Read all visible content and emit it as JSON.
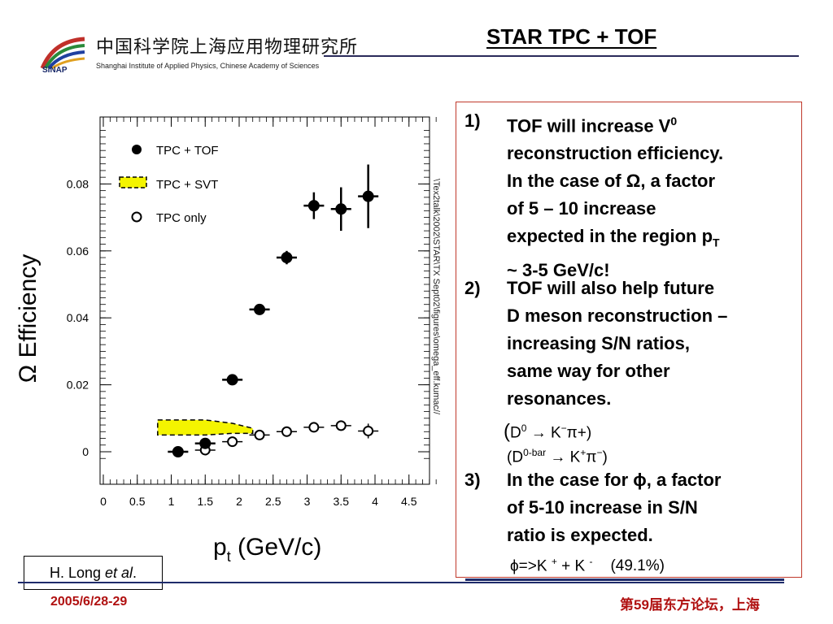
{
  "header": {
    "org_cn": "中国科学院上海应用物理研究所",
    "org_en": "Shanghai Institute of Applied Physics, Chinese Academy of Sciences",
    "logo_text": "SINAP",
    "slide_title": "STAR TPC + TOF"
  },
  "side_path": "\\Tex2talk\\2002\\STAR\\TX Sept02\\figures\\omega_eff.kumac//",
  "points": {
    "p1": {
      "num": "1)",
      "l1": "TOF will increase V",
      "l1_sup": "0",
      "l2": "reconstruction efficiency.",
      "l3a": "In the case of ",
      "l3_sym": "Ω",
      "l3b": ", a factor",
      "l4": "of 5 – 10 increase",
      "l5": "expected in the region p",
      "l5_sub": "T",
      "l6": "~ 3-5 GeV/c!"
    },
    "p2": {
      "num": "2)",
      "l1": "TOF will also help future",
      "l2": "D meson reconstruction –",
      "l3": "increasing S/N ratios,",
      "l4": "same way for other",
      "l5": "resonances."
    },
    "decay1": {
      "open": "(",
      "d": "D",
      "d_sup": "0",
      "rest": " → K",
      "k_sup": "−",
      "pi": "π+)"
    },
    "decay2": {
      "d": "(D",
      "d_sup": "0-bar",
      "rest": " → K",
      "k_sup": "+",
      "pi": "π",
      "pi_sup": "−",
      "close": ")"
    },
    "p3": {
      "num": "3)",
      "l1a": "In the case for ",
      "l1_sym": "ϕ",
      "l1b": ", a factor",
      "l2": "of 5-10 increase in S/N",
      "l3": "ratio is expected."
    },
    "decay3": {
      "phi": "ϕ",
      "a": "=>K ",
      "a_sup": "+",
      "b": "  + K ",
      "b_sup": "-",
      "br": "(49.1%)"
    }
  },
  "footer": {
    "credit_a": "H. Long ",
    "credit_b": "et al",
    "credit_c": ".",
    "date": "2005/6/28-29",
    "forum_a": "第",
    "forum_b": "59",
    "forum_c": "届东方论坛，上海"
  },
  "chart_data": {
    "type": "scatter",
    "xlabel": "p",
    "xlabel_sub": "t",
    "xlabel_unit": " (GeV/c)",
    "ylabel": "Ω Efficiency",
    "xlim": [
      0,
      5
    ],
    "ylim": [
      -0.004,
      0.1
    ],
    "x_ticks": [
      0,
      0.5,
      1,
      1.5,
      2,
      2.5,
      3,
      3.5,
      4,
      4.5
    ],
    "x_tick_labels": [
      "0",
      "0.5",
      "1",
      "1.5",
      "2",
      "2.5",
      "3",
      "3.5",
      "4",
      "4.5"
    ],
    "y_ticks": [
      0,
      0.02,
      0.04,
      0.06,
      0.08
    ],
    "y_tick_labels": [
      "0",
      "0.02",
      "0.04",
      "0.06",
      "0.08"
    ],
    "legend_position": "top-left",
    "accent_color": "#f4f400",
    "series": [
      {
        "name": "TPC + TOF",
        "marker": "filled-circle",
        "x": [
          1.1,
          1.5,
          1.9,
          2.3,
          2.7,
          3.1,
          3.5,
          3.9
        ],
        "y": [
          0.0,
          0.0025,
          0.0215,
          0.0425,
          0.058,
          0.0735,
          0.0725,
          0.0763
        ],
        "xerr": [
          0.15,
          0.15,
          0.15,
          0.15,
          0.15,
          0.15,
          0.15,
          0.15
        ],
        "yerr": [
          0.001,
          0.001,
          0.0015,
          0.0015,
          0.002,
          0.004,
          0.0065,
          0.0095
        ]
      },
      {
        "name": "TPC + SVT",
        "marker": "band",
        "x": [
          0.8,
          1.5,
          1.9,
          2.2
        ],
        "y_low": [
          0.005,
          0.005,
          0.0055,
          0.0055
        ],
        "y_high": [
          0.0095,
          0.0095,
          0.0085,
          0.007
        ]
      },
      {
        "name": "TPC only",
        "marker": "open-circle",
        "x": [
          1.5,
          1.9,
          2.3,
          2.7,
          3.1,
          3.5,
          3.9
        ],
        "y": [
          0.0005,
          0.003,
          0.005,
          0.006,
          0.0073,
          0.0078,
          0.0062
        ],
        "xerr": [
          0.15,
          0.15,
          0.15,
          0.15,
          0.15,
          0.15,
          0.15
        ],
        "yerr": [
          0.0008,
          0.0008,
          0.0009,
          0.001,
          0.001,
          0.0012,
          0.0022
        ]
      }
    ]
  }
}
